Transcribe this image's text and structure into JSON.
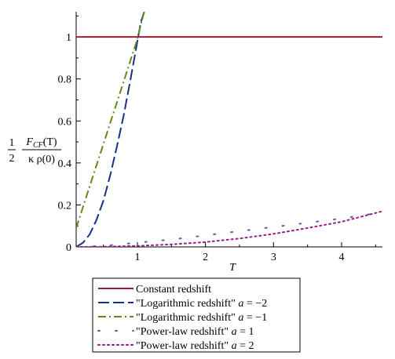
{
  "chart_data": {
    "type": "line",
    "xlabel": "T",
    "ylabel": {
      "prefix_num": "1",
      "prefix_den": "2",
      "numerator_main": "F",
      "numerator_sub": "CF",
      "numerator_arg": "(T)",
      "denominator": "κ ρ(0)"
    },
    "xlim": [
      0.1,
      4.6
    ],
    "ylim": [
      0,
      1.12
    ],
    "x_ticks": [
      "1",
      "2",
      "3",
      "4"
    ],
    "y_ticks": [
      "0",
      "0.2",
      "0.4",
      "0.6",
      "0.8",
      "1"
    ],
    "series": [
      {
        "name": "Constant redshift",
        "color": "#9b1b30",
        "style": "solid",
        "x": [
          0.1,
          4.6
        ],
        "y": [
          1,
          1
        ]
      },
      {
        "name": "\"Logarithmic redshift\" a = −2",
        "color": "#1a2f86",
        "style": "dash",
        "x": [
          0.1,
          0.2,
          0.3,
          0.4,
          0.5,
          0.6,
          0.7,
          0.8,
          0.9,
          1.0,
          1.05,
          1.1
        ],
        "y": [
          0.0,
          0.02,
          0.06,
          0.13,
          0.22,
          0.34,
          0.48,
          0.63,
          0.8,
          0.98,
          1.07,
          1.12
        ]
      },
      {
        "name": "\"Logarithmic redshift\" a = −1",
        "color": "#5f8a1c",
        "style": "dashdot",
        "x": [
          0.1,
          0.2,
          0.3,
          0.4,
          0.5,
          0.6,
          0.7,
          0.8,
          0.9,
          1.0,
          1.05,
          1.1
        ],
        "y": [
          0.09,
          0.19,
          0.29,
          0.39,
          0.49,
          0.59,
          0.69,
          0.79,
          0.89,
          0.99,
          1.06,
          1.12
        ]
      },
      {
        "name": "\"Power-law redshift\" a = 1",
        "color": "#5a5ab0",
        "style": "sparse-dot",
        "x": [
          0.1,
          0.5,
          1.0,
          1.5,
          2.0,
          2.5,
          3.0,
          3.5,
          4.0,
          4.5
        ],
        "y": [
          0.0,
          0.005,
          0.02,
          0.035,
          0.055,
          0.075,
          0.095,
          0.115,
          0.135,
          0.16
        ]
      },
      {
        "name": "\"Power-law redshift\" a = 2",
        "color": "#9b1b8f",
        "style": "dot",
        "x": [
          0.1,
          0.5,
          1.0,
          1.5,
          2.0,
          2.5,
          3.0,
          3.5,
          4.0,
          4.6
        ],
        "y": [
          0.0,
          0.001,
          0.005,
          0.012,
          0.023,
          0.04,
          0.062,
          0.09,
          0.12,
          0.17
        ]
      }
    ],
    "legend": {
      "placement": "bottom",
      "entries": [
        {
          "pre": "Constant redshift",
          "italic": "",
          "post": ""
        },
        {
          "pre": "\"Logarithmic redshift\" ",
          "italic": "a",
          "post": " = −2"
        },
        {
          "pre": "\"Logarithmic redshift\" ",
          "italic": "a",
          "post": " = −1"
        },
        {
          "pre": "\"Power-law redshift\" ",
          "italic": "a",
          "post": " = 1"
        },
        {
          "pre": "\"Power-law redshift\" ",
          "italic": "a",
          "post": " = 2"
        }
      ]
    },
    "grid": false
  }
}
